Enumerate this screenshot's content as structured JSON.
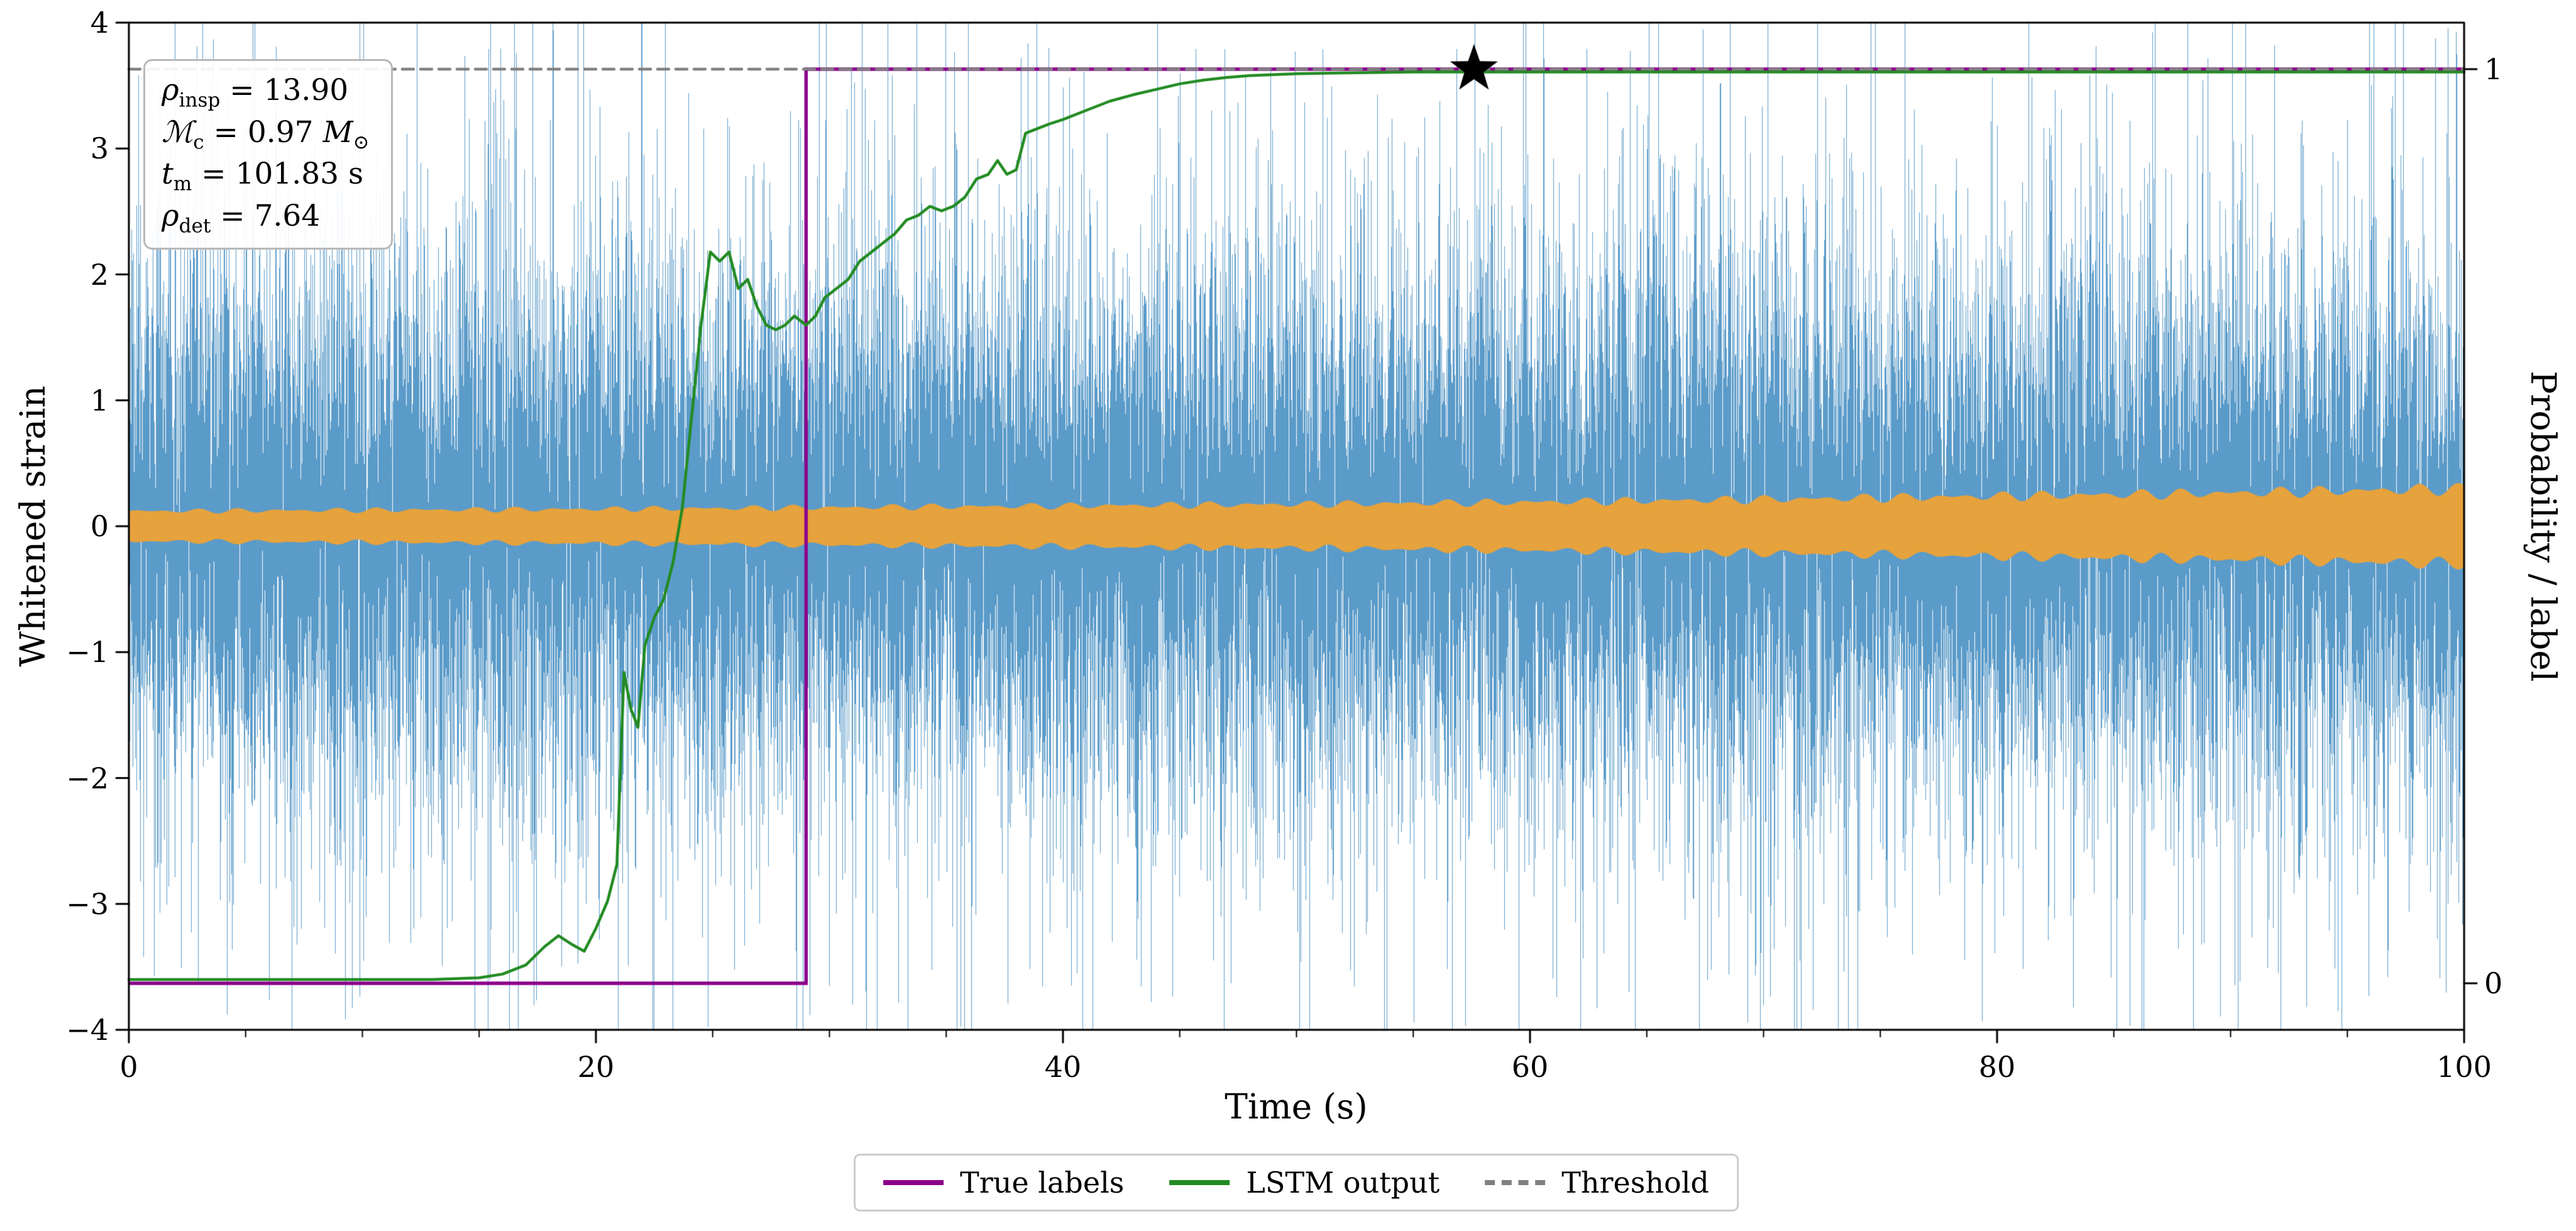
{
  "annotation": {
    "lines": [
      {
        "sym": "ρ",
        "sub": "insp",
        "rest": " = 13.90"
      },
      {
        "sym": "ℳ",
        "sub": "c",
        "rest": " = 0.97 ",
        "sym2": "M",
        "sub2": "⊙"
      },
      {
        "sym": "t",
        "sub": "m",
        "rest": " = 101.83 s"
      },
      {
        "sym": "ρ",
        "sub": "det",
        "rest": " = 7.64"
      }
    ]
  },
  "legend": {
    "items": [
      {
        "label": "True labels",
        "color": "#8b008b",
        "style": "solid"
      },
      {
        "label": "LSTM output",
        "color": "#228b22",
        "style": "solid"
      },
      {
        "label": "Threshold",
        "color": "#808080",
        "style": "dashed"
      }
    ]
  },
  "chart_data": {
    "type": "line",
    "title": "",
    "xlabel": "Time (s)",
    "ylabel_left": "Whitened strain",
    "ylabel_right": "Probability / label",
    "xlim": [
      0,
      100
    ],
    "ylim_left": [
      -4,
      4
    ],
    "xticks": [
      0,
      20,
      40,
      60,
      80,
      100
    ],
    "x_minor_step": 5,
    "yticks_left": [
      -4,
      -3,
      -2,
      -1,
      0,
      1,
      2,
      3,
      4
    ],
    "yticks_right": [
      0,
      1
    ],
    "prob_axis_strain_span": [
      -3.63,
      3.63
    ],
    "grid": false,
    "legend_position": "below",
    "series": [
      {
        "name": "Whitened strain (noise)",
        "type": "noise_band",
        "axis": "strain",
        "color": "#5b9bc9",
        "sigma": 1.0,
        "samples_per_column": 7,
        "spike_prob_small": 0.22,
        "spike_prob_large": 0.05,
        "clip": [
          -4,
          4
        ],
        "seed": 1337
      },
      {
        "name": "Injected signal envelope",
        "type": "envelope",
        "axis": "strain",
        "color": "#e6a23c",
        "t": [
          0,
          10,
          20,
          30,
          40,
          50,
          60,
          70,
          80,
          90,
          100
        ],
        "amp": [
          0.14,
          0.15,
          0.16,
          0.175,
          0.19,
          0.205,
          0.225,
          0.25,
          0.28,
          0.31,
          0.35
        ],
        "ripple_depth": 0.15
      },
      {
        "name": "True labels",
        "type": "step",
        "axis": "prob",
        "color": "#8b008b",
        "linewidth": 5.5,
        "step_time": 29.0,
        "low": 0,
        "high": 1
      },
      {
        "name": "LSTM output",
        "type": "line",
        "axis": "prob",
        "color": "#228b22",
        "linewidth": 4.5,
        "points": [
          [
            0,
            0.004
          ],
          [
            5,
            0.004
          ],
          [
            10,
            0.004
          ],
          [
            13,
            0.004
          ],
          [
            15,
            0.006
          ],
          [
            16,
            0.01
          ],
          [
            17,
            0.02
          ],
          [
            17.8,
            0.04
          ],
          [
            18.4,
            0.052
          ],
          [
            19.0,
            0.042
          ],
          [
            19.5,
            0.035
          ],
          [
            20.0,
            0.06
          ],
          [
            20.5,
            0.09
          ],
          [
            20.9,
            0.13
          ],
          [
            21.2,
            0.34
          ],
          [
            21.5,
            0.3
          ],
          [
            21.8,
            0.28
          ],
          [
            22.1,
            0.37
          ],
          [
            22.5,
            0.4
          ],
          [
            22.9,
            0.42
          ],
          [
            23.3,
            0.46
          ],
          [
            23.7,
            0.52
          ],
          [
            24.1,
            0.62
          ],
          [
            24.5,
            0.72
          ],
          [
            24.9,
            0.8
          ],
          [
            25.3,
            0.79
          ],
          [
            25.7,
            0.8
          ],
          [
            26.1,
            0.76
          ],
          [
            26.5,
            0.77
          ],
          [
            26.9,
            0.74
          ],
          [
            27.3,
            0.72
          ],
          [
            27.7,
            0.715
          ],
          [
            28.1,
            0.72
          ],
          [
            28.5,
            0.73
          ],
          [
            29.0,
            0.72
          ],
          [
            29.4,
            0.73
          ],
          [
            29.8,
            0.75
          ],
          [
            30.3,
            0.76
          ],
          [
            30.8,
            0.77
          ],
          [
            31.3,
            0.79
          ],
          [
            31.8,
            0.8
          ],
          [
            32.3,
            0.81
          ],
          [
            32.8,
            0.82
          ],
          [
            33.3,
            0.835
          ],
          [
            33.8,
            0.84
          ],
          [
            34.3,
            0.85
          ],
          [
            34.8,
            0.845
          ],
          [
            35.3,
            0.85
          ],
          [
            35.8,
            0.86
          ],
          [
            36.3,
            0.88
          ],
          [
            36.8,
            0.885
          ],
          [
            37.2,
            0.9
          ],
          [
            37.6,
            0.885
          ],
          [
            38.0,
            0.89
          ],
          [
            38.4,
            0.93
          ],
          [
            38.9,
            0.935
          ],
          [
            39.4,
            0.94
          ],
          [
            40.0,
            0.945
          ],
          [
            41,
            0.955
          ],
          [
            42,
            0.965
          ],
          [
            43,
            0.972
          ],
          [
            44,
            0.978
          ],
          [
            45,
            0.984
          ],
          [
            46,
            0.988
          ],
          [
            47,
            0.991
          ],
          [
            48,
            0.993
          ],
          [
            50,
            0.995
          ],
          [
            52,
            0.996
          ],
          [
            55,
            0.997
          ],
          [
            60,
            0.997
          ],
          [
            70,
            0.997
          ],
          [
            80,
            0.997
          ],
          [
            90,
            0.997
          ],
          [
            100,
            0.997
          ]
        ]
      },
      {
        "name": "Threshold",
        "type": "hline",
        "axis": "prob",
        "color": "#808080",
        "linewidth": 4.5,
        "dash": [
          18,
          11
        ],
        "value": 1.0
      },
      {
        "name": "Detection marker",
        "type": "star",
        "axis": "prob",
        "color": "#000000",
        "t": 57.6,
        "value": 1.0,
        "outer_radius": 40,
        "inner_radius": 16
      }
    ]
  }
}
